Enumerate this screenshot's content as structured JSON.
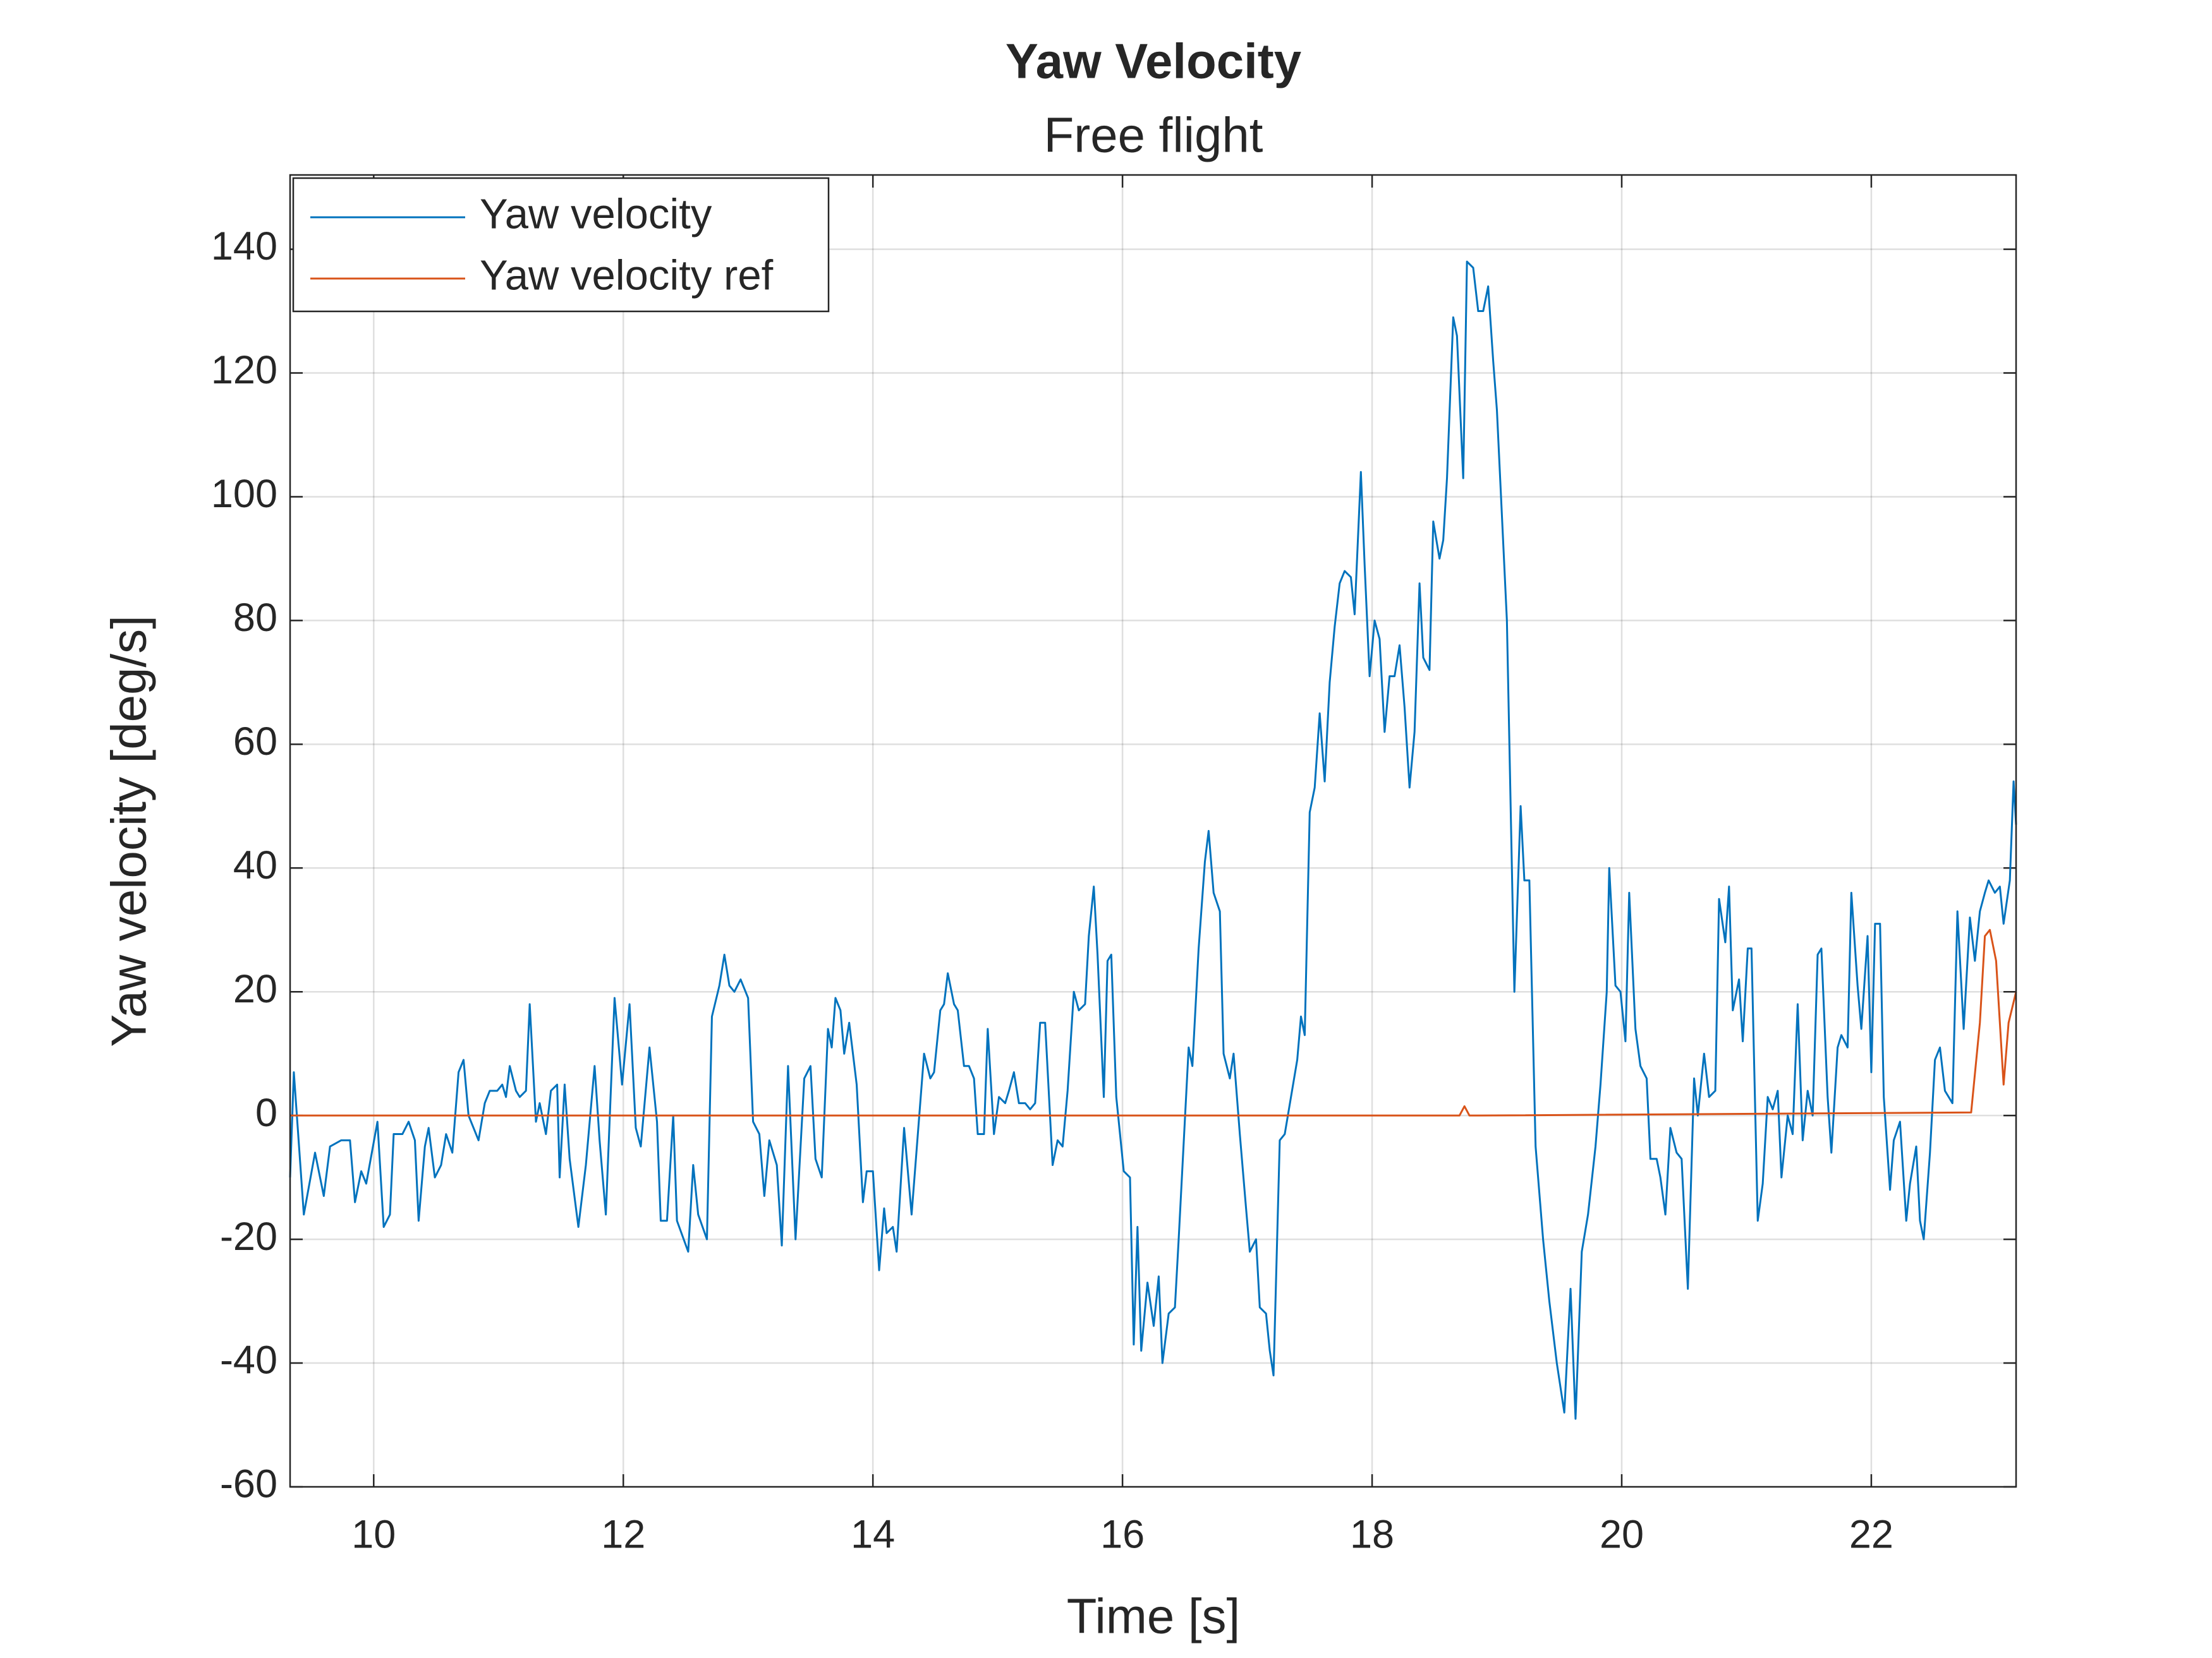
{
  "chart_data": {
    "type": "line",
    "title": "Yaw Velocity",
    "subtitle": "Free flight",
    "x_label": "Time [s]",
    "y_label": "Yaw velocity [deg/s]",
    "xlim": [
      9.33,
      23.16
    ],
    "ylim": [
      -60,
      152
    ],
    "xticks": [
      10,
      12,
      14,
      16,
      18,
      20,
      22
    ],
    "yticks": [
      -60,
      -40,
      -20,
      0,
      20,
      40,
      60,
      80,
      100,
      120,
      140
    ],
    "grid": true,
    "legend_position": "top-left",
    "series": [
      {
        "name": "Yaw velocity",
        "color": "#0072bd",
        "x": [
          9.33,
          9.36,
          9.44,
          9.53,
          9.6,
          9.65,
          9.74,
          9.81,
          9.85,
          9.9,
          9.94,
          10.03,
          10.08,
          10.13,
          10.16,
          10.23,
          10.28,
          10.33,
          10.36,
          10.41,
          10.44,
          10.49,
          10.54,
          10.58,
          10.63,
          10.68,
          10.72,
          10.76,
          10.84,
          10.89,
          10.93,
          10.99,
          11.03,
          11.06,
          11.09,
          11.14,
          11.17,
          11.22,
          11.25,
          11.3,
          11.33,
          11.38,
          11.42,
          11.47,
          11.49,
          11.53,
          11.57,
          11.64,
          11.7,
          11.77,
          11.81,
          11.86,
          11.93,
          11.99,
          12.05,
          12.1,
          12.14,
          12.21,
          12.27,
          12.3,
          12.35,
          12.4,
          12.43,
          12.52,
          12.56,
          12.6,
          12.67,
          12.71,
          12.77,
          12.81,
          12.85,
          12.89,
          12.94,
          13.0,
          13.04,
          13.09,
          13.13,
          13.17,
          13.23,
          13.27,
          13.32,
          13.38,
          13.45,
          13.5,
          13.54,
          13.59,
          13.64,
          13.67,
          13.7,
          13.74,
          13.77,
          13.81,
          13.87,
          13.92,
          13.95,
          14.0,
          14.05,
          14.09,
          14.11,
          14.16,
          14.19,
          14.25,
          14.31,
          14.41,
          14.46,
          14.49,
          14.54,
          14.57,
          14.6,
          14.65,
          14.68,
          14.73,
          14.77,
          14.81,
          14.84,
          14.89,
          14.92,
          14.97,
          15.01,
          15.06,
          15.09,
          15.13,
          15.17,
          15.22,
          15.26,
          15.3,
          15.34,
          15.38,
          15.44,
          15.48,
          15.52,
          15.56,
          15.61,
          15.65,
          15.7,
          15.73,
          15.77,
          15.8,
          15.85,
          15.88,
          15.91,
          15.95,
          16.01,
          16.06,
          16.09,
          16.12,
          16.15,
          16.2,
          16.25,
          16.29,
          16.32,
          16.37,
          16.42,
          16.45,
          16.53,
          16.56,
          16.61,
          16.66,
          16.69,
          16.73,
          16.78,
          16.81,
          16.86,
          16.89,
          16.94,
          16.99,
          17.02,
          17.07,
          17.1,
          17.15,
          17.18,
          17.21,
          17.26,
          17.3,
          17.35,
          17.4,
          17.43,
          17.46,
          17.5,
          17.54,
          17.58,
          17.62,
          17.66,
          17.7,
          17.74,
          17.78,
          17.83,
          17.86,
          17.91,
          17.94,
          17.98,
          18.02,
          18.06,
          18.1,
          18.14,
          18.18,
          18.22,
          18.26,
          18.3,
          18.34,
          18.38,
          18.41,
          18.46,
          18.49,
          18.54,
          18.57,
          18.6,
          18.65,
          18.68,
          18.73,
          18.76,
          18.81,
          18.85,
          18.89,
          18.93,
          18.97,
          19.0,
          19.08,
          19.14,
          19.19,
          19.22,
          19.26,
          19.31,
          19.37,
          19.42,
          19.48,
          19.54,
          19.59,
          19.63,
          19.68,
          19.73,
          19.79,
          19.83,
          19.88,
          19.9,
          19.95,
          19.99,
          20.03,
          20.06,
          20.11,
          20.15,
          20.2,
          20.23,
          20.28,
          20.31,
          20.35,
          20.39,
          20.44,
          20.48,
          20.53,
          20.58,
          20.61,
          20.66,
          20.7,
          20.75,
          20.78,
          20.83,
          20.86,
          20.89,
          20.94,
          20.97,
          21.01,
          21.04,
          21.09,
          21.13,
          21.17,
          21.21,
          21.25,
          21.28,
          21.33,
          21.37,
          21.41,
          21.45,
          21.49,
          21.53,
          21.57,
          21.6,
          21.65,
          21.68,
          21.73,
          21.76,
          21.81,
          21.84,
          21.89,
          21.92,
          21.97,
          22.0,
          22.03,
          22.07,
          22.1,
          22.15,
          22.18,
          22.23,
          22.28,
          22.31,
          22.36,
          22.39,
          22.42,
          22.47,
          22.51,
          22.55,
          22.59,
          22.65,
          22.69,
          22.74,
          22.79,
          22.83,
          22.87,
          22.91,
          22.94,
          22.99,
          23.03,
          23.06,
          23.11,
          23.14,
          23.16
        ],
        "values": [
          -10,
          7,
          -16,
          -6,
          -13,
          -5,
          -4,
          -4,
          -14,
          -9,
          -11,
          -1,
          -18,
          -16,
          -3,
          -3,
          -1,
          -4,
          -17,
          -5,
          -2,
          -10,
          -8,
          -3,
          -6,
          7,
          9,
          0,
          -4,
          2,
          4,
          4,
          5,
          3,
          8,
          4,
          3,
          4,
          18,
          -1,
          2,
          -3,
          4,
          5,
          -10,
          5,
          -7,
          -18,
          -8,
          8,
          -4,
          -16,
          19,
          5,
          18,
          -2,
          -5,
          11,
          -1,
          -17,
          -17,
          0,
          -17,
          -22,
          -8,
          -16,
          -20,
          16,
          21,
          26,
          21,
          20,
          22,
          19,
          -1,
          -3,
          -13,
          -4,
          -8,
          -21,
          8,
          -20,
          6,
          8,
          -7,
          -10,
          14,
          11,
          19,
          17,
          10,
          15,
          5,
          -14,
          -9,
          -9,
          -25,
          -15,
          -19,
          -18,
          -22,
          -2,
          -16,
          10,
          6,
          7,
          17,
          18,
          23,
          18,
          17,
          8,
          8,
          6,
          -3,
          -3,
          14,
          -3,
          3,
          2,
          4,
          7,
          2,
          2,
          1,
          2,
          15,
          15,
          -8,
          -4,
          -5,
          4,
          20,
          17,
          18,
          29,
          37,
          26,
          3,
          25,
          26,
          3,
          -9,
          -10,
          -37,
          -18,
          -38,
          -27,
          -34,
          -26,
          -40,
          -32,
          -31,
          -20,
          11,
          8,
          27,
          41,
          46,
          36,
          33,
          10,
          6,
          10,
          -3,
          -15,
          -22,
          -20,
          -31,
          -32,
          -38,
          -42,
          -4,
          -3,
          3,
          9,
          16,
          13,
          49,
          53,
          65,
          54,
          70,
          79,
          86,
          88,
          87,
          81,
          104,
          89,
          71,
          80,
          77,
          62,
          71,
          71,
          76,
          66,
          53,
          62,
          86,
          74,
          72,
          96,
          90,
          93,
          103,
          129,
          126,
          103,
          138,
          137,
          130,
          130,
          134,
          122,
          114,
          80,
          20,
          50,
          38,
          38,
          -5,
          -20,
          -30,
          -40,
          -48,
          -28,
          -49,
          -22,
          -16,
          -5,
          5,
          20,
          40,
          21,
          20,
          12,
          36,
          14,
          8,
          6,
          -7,
          -7,
          -10,
          -16,
          -2,
          -6,
          -7,
          -28,
          6,
          0,
          10,
          3,
          4,
          35,
          28,
          37,
          17,
          22,
          12,
          27,
          27,
          -17,
          -11,
          3,
          1,
          4,
          -10,
          0,
          -3,
          18,
          -4,
          4,
          0,
          26,
          27,
          3,
          -6,
          11,
          13,
          11,
          36,
          21,
          14,
          29,
          7,
          31,
          31,
          3,
          -12,
          -4,
          -1,
          -17,
          -11,
          -5,
          -17,
          -20,
          -6,
          9,
          11,
          4,
          2,
          33,
          14,
          32,
          25,
          33,
          36,
          38,
          36,
          37,
          31,
          38,
          54,
          47
        ]
      },
      {
        "name": "Yaw velocity ref",
        "color": "#d95319",
        "x": [
          9.33,
          18.7,
          18.74,
          18.78,
          18.85,
          22.8,
          22.87,
          22.91,
          22.95,
          23.0,
          23.06,
          23.1,
          23.16
        ],
        "values": [
          0,
          0,
          1.5,
          0,
          0,
          0.5,
          15,
          29,
          30,
          25,
          5,
          15,
          20
        ]
      }
    ]
  }
}
